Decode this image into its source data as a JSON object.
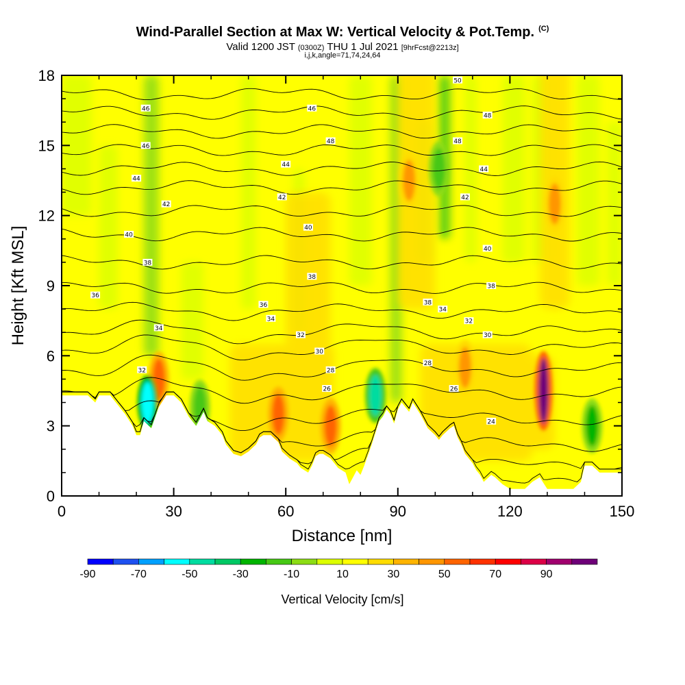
{
  "header": {
    "title": "Wind-Parallel Section at Max W: Vertical Velocity & Pot.Temp.",
    "copyright": "(C)",
    "valid_prefix": "Valid 1200 JST",
    "valid_utc": "(0300Z)",
    "valid_date": "THU 1 Jul 2021",
    "forecast": "[9hrFcst@2213z]",
    "params": "i,j,k,angle=71,74,24,64"
  },
  "colors": {
    "terrain": "#ffffff",
    "contour": "#000000"
  },
  "chart_data": {
    "type": "heatmap",
    "xlabel": "Distance [nm]",
    "ylabel": "Height [Kft MSL]",
    "xlim": [
      0,
      150
    ],
    "ylim": [
      0,
      18
    ],
    "x_ticks": [
      "0",
      "30",
      "60",
      "90",
      "120",
      "150"
    ],
    "y_ticks": [
      "0",
      "3",
      "6",
      "9",
      "12",
      "15",
      "18"
    ],
    "colorbar": {
      "title": "Vertical Velocity [cm/s]",
      "labels": [
        "-90",
        "-70",
        "-50",
        "-30",
        "-10",
        "10",
        "30",
        "50",
        "70",
        "90"
      ],
      "colors": [
        "#0000ff",
        "#1e50f0",
        "#00a0ff",
        "#00ffff",
        "#00dca0",
        "#00c864",
        "#00b400",
        "#46c814",
        "#8cdc14",
        "#dcff00",
        "#ffff00",
        "#ffdc00",
        "#ffb400",
        "#ff9600",
        "#ff6400",
        "#ff3200",
        "#ff0000",
        "#dc0046",
        "#a0006e",
        "#6e0078"
      ]
    },
    "terrain_kft": [
      [
        0,
        4.3
      ],
      [
        7,
        4.3
      ],
      [
        9,
        4.0
      ],
      [
        10,
        4.3
      ],
      [
        13,
        4.3
      ],
      [
        15,
        3.9
      ],
      [
        17,
        3.5
      ],
      [
        19,
        3.0
      ],
      [
        20,
        2.6
      ],
      [
        21,
        2.6
      ],
      [
        22,
        3.2
      ],
      [
        24,
        2.9
      ],
      [
        26,
        3.8
      ],
      [
        28,
        4.3
      ],
      [
        30,
        4.3
      ],
      [
        32,
        4.0
      ],
      [
        34,
        3.4
      ],
      [
        36,
        3.0
      ],
      [
        38,
        3.6
      ],
      [
        39,
        3.2
      ],
      [
        41,
        3.0
      ],
      [
        43,
        2.6
      ],
      [
        44,
        2.2
      ],
      [
        46,
        1.8
      ],
      [
        48,
        1.7
      ],
      [
        50,
        1.9
      ],
      [
        52,
        2.2
      ],
      [
        53,
        2.5
      ],
      [
        54,
        2.6
      ],
      [
        56,
        2.6
      ],
      [
        58,
        2.3
      ],
      [
        59,
        1.9
      ],
      [
        61,
        1.6
      ],
      [
        63,
        1.4
      ],
      [
        64,
        1.2
      ],
      [
        66,
        1.0
      ],
      [
        67,
        1.3
      ],
      [
        68,
        1.7
      ],
      [
        69,
        1.8
      ],
      [
        70,
        1.8
      ],
      [
        72,
        1.6
      ],
      [
        73,
        1.4
      ],
      [
        74,
        1.2
      ],
      [
        75,
        1.1
      ],
      [
        76,
        1.0
      ],
      [
        77,
        0.5
      ],
      [
        78,
        0.8
      ],
      [
        79,
        1.1
      ],
      [
        80,
        0.9
      ],
      [
        81,
        1.3
      ],
      [
        83,
        2.2
      ],
      [
        85,
        3.2
      ],
      [
        86,
        3.4
      ],
      [
        87,
        3.7
      ],
      [
        88,
        3.5
      ],
      [
        89,
        3.1
      ],
      [
        90,
        3.7
      ],
      [
        91,
        4.0
      ],
      [
        93,
        3.6
      ],
      [
        94,
        4.0
      ],
      [
        96,
        3.5
      ],
      [
        97,
        3.2
      ],
      [
        98,
        2.9
      ],
      [
        100,
        2.6
      ],
      [
        101,
        2.4
      ],
      [
        102,
        2.6
      ],
      [
        104,
        2.9
      ],
      [
        105,
        3.0
      ],
      [
        106,
        2.5
      ],
      [
        107,
        2.2
      ],
      [
        108,
        1.8
      ],
      [
        109,
        1.6
      ],
      [
        110,
        1.4
      ],
      [
        111,
        1.1
      ],
      [
        112,
        0.9
      ],
      [
        113,
        0.6
      ],
      [
        115,
        0.9
      ],
      [
        116,
        0.8
      ],
      [
        118,
        0.5
      ],
      [
        120,
        0.3
      ],
      [
        124,
        0.3
      ],
      [
        126,
        0.6
      ],
      [
        128,
        0.8
      ],
      [
        130,
        0.3
      ],
      [
        137,
        0.3
      ],
      [
        139,
        0.6
      ],
      [
        140,
        1.3
      ],
      [
        142,
        1.3
      ],
      [
        144,
        1.0
      ],
      [
        147,
        1.0
      ],
      [
        148,
        1.0
      ],
      [
        150,
        1.0
      ]
    ],
    "updrafts": [
      {
        "x": 26,
        "y": 5.0,
        "value": 40
      },
      {
        "x": 58,
        "y": 3.5,
        "value": 40
      },
      {
        "x": 72,
        "y": 3.0,
        "value": 40
      },
      {
        "x": 108,
        "y": 5.5,
        "value": 30
      },
      {
        "x": 129,
        "y": 4.5,
        "value": 90
      },
      {
        "x": 132,
        "y": 12.5,
        "value": 30
      },
      {
        "x": 93,
        "y": 13.5,
        "value": 30
      }
    ],
    "downdrafts": [
      {
        "x": 23,
        "y": 4.0,
        "value": -70
      },
      {
        "x": 84,
        "y": 4.3,
        "value": -60
      },
      {
        "x": 37,
        "y": 3.8,
        "value": -30
      },
      {
        "x": 142,
        "y": 3.0,
        "value": -40
      },
      {
        "x": 101,
        "y": 14.0,
        "value": -30
      }
    ],
    "contour_labels": [
      {
        "text": "32",
        "x": 21.5,
        "y": 5.4
      },
      {
        "text": "34",
        "x": 26,
        "y": 7.2
      },
      {
        "text": "36",
        "x": 9,
        "y": 8.6
      },
      {
        "text": "36",
        "x": 54,
        "y": 8.2
      },
      {
        "text": "34",
        "x": 56,
        "y": 7.6
      },
      {
        "text": "32",
        "x": 64,
        "y": 6.9
      },
      {
        "text": "30",
        "x": 69,
        "y": 6.2
      },
      {
        "text": "28",
        "x": 72,
        "y": 5.4
      },
      {
        "text": "26",
        "x": 71,
        "y": 4.6
      },
      {
        "text": "38",
        "x": 23,
        "y": 10.0
      },
      {
        "text": "38",
        "x": 67,
        "y": 9.4
      },
      {
        "text": "40",
        "x": 18,
        "y": 11.2
      },
      {
        "text": "40",
        "x": 66,
        "y": 11.5
      },
      {
        "text": "42",
        "x": 28,
        "y": 12.5
      },
      {
        "text": "42",
        "x": 59,
        "y": 12.8
      },
      {
        "text": "44",
        "x": 20,
        "y": 13.6
      },
      {
        "text": "44",
        "x": 60,
        "y": 14.2
      },
      {
        "text": "46",
        "x": 22.5,
        "y": 15.0
      },
      {
        "text": "46",
        "x": 22.5,
        "y": 16.6
      },
      {
        "text": "46",
        "x": 67,
        "y": 16.6
      },
      {
        "text": "48",
        "x": 72,
        "y": 15.2
      },
      {
        "text": "50",
        "x": 106,
        "y": 17.8
      },
      {
        "text": "48",
        "x": 106,
        "y": 15.2
      },
      {
        "text": "48",
        "x": 114,
        "y": 16.3
      },
      {
        "text": "44",
        "x": 113,
        "y": 14.0
      },
      {
        "text": "42",
        "x": 108,
        "y": 12.8
      },
      {
        "text": "40",
        "x": 114,
        "y": 10.6
      },
      {
        "text": "38",
        "x": 115,
        "y": 9.0
      },
      {
        "text": "38",
        "x": 98,
        "y": 8.3
      },
      {
        "text": "34",
        "x": 102,
        "y": 8.0
      },
      {
        "text": "32",
        "x": 109,
        "y": 7.5
      },
      {
        "text": "30",
        "x": 114,
        "y": 6.9
      },
      {
        "text": "28",
        "x": 98,
        "y": 5.7
      },
      {
        "text": "26",
        "x": 105,
        "y": 4.6
      },
      {
        "text": "24",
        "x": 115,
        "y": 3.2
      }
    ]
  }
}
